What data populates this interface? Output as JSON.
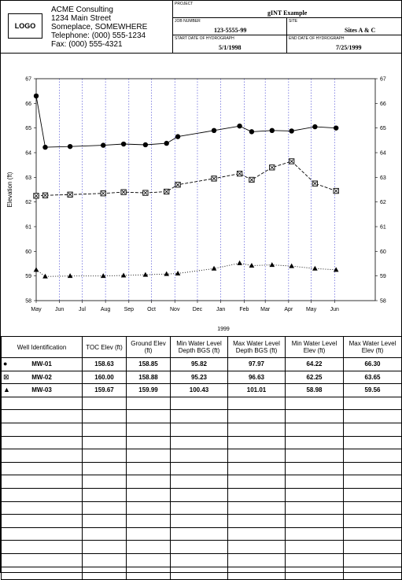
{
  "header": {
    "logo": "LOGO",
    "company_lines": [
      "ACME Consulting",
      "1234 Main Street",
      "Someplace, SOMEWHERE",
      "Telephone:  (000) 555-1234",
      "Fax:  (000) 555-4321"
    ],
    "project_label": "PROJECT",
    "project": "gINT Example",
    "job_number_label": "JOB NUMBER",
    "job_number": "123-5555-99",
    "site_label": "SITE",
    "site": "Sites A & C",
    "start_label": "START DATE OF HYDROGRAPH",
    "start_date": "5/1/1998",
    "end_label": "END DATE OF HYDROGRAPH",
    "end_date": "7/25/1999"
  },
  "chart_data": {
    "type": "line",
    "ylabel": "Elevation (ft)",
    "xlabel": "",
    "ylim": [
      58,
      67
    ],
    "yticks": [
      "58",
      "59",
      "60",
      "61",
      "62",
      "63",
      "64",
      "65",
      "66",
      "67"
    ],
    "x_tick_labels": [
      "May",
      "Jun",
      "Jul",
      "Aug",
      "Sep",
      "Oct",
      "Nov",
      "Dec",
      "Jan",
      "Feb",
      "Mar",
      "Apr",
      "May",
      "Jun"
    ],
    "year_label": "1999",
    "grid": "vertical dotted",
    "series": [
      {
        "name": "MW-01",
        "marker": "circle",
        "line": "solid",
        "points": [
          [
            "1998-05-01",
            66.3
          ],
          [
            "1998-05-13",
            64.22
          ],
          [
            "1998-06-15",
            64.25
          ],
          [
            "1998-07-29",
            64.3
          ],
          [
            "1998-08-25",
            64.35
          ],
          [
            "1998-09-23",
            64.32
          ],
          [
            "1998-10-21",
            64.38
          ],
          [
            "1998-11-05",
            64.65
          ],
          [
            "1998-12-23",
            64.9
          ],
          [
            "1999-01-26",
            65.08
          ],
          [
            "1999-02-11",
            64.85
          ],
          [
            "1999-03-10",
            64.9
          ],
          [
            "1999-04-05",
            64.88
          ],
          [
            "1999-05-06",
            65.05
          ],
          [
            "1999-06-03",
            65.0
          ]
        ]
      },
      {
        "name": "MW-02",
        "marker": "boxed-x",
        "line": "dashed",
        "points": [
          [
            "1998-05-01",
            62.25
          ],
          [
            "1998-05-13",
            62.27
          ],
          [
            "1998-06-15",
            62.3
          ],
          [
            "1998-07-29",
            62.35
          ],
          [
            "1998-08-25",
            62.4
          ],
          [
            "1998-09-23",
            62.37
          ],
          [
            "1998-10-21",
            62.42
          ],
          [
            "1998-11-05",
            62.7
          ],
          [
            "1998-12-23",
            62.95
          ],
          [
            "1999-01-26",
            63.15
          ],
          [
            "1999-02-11",
            62.9
          ],
          [
            "1999-03-10",
            63.4
          ],
          [
            "1999-04-05",
            63.65
          ],
          [
            "1999-05-06",
            62.75
          ],
          [
            "1999-06-03",
            62.45
          ]
        ]
      },
      {
        "name": "MW-03",
        "marker": "triangle",
        "line": "dotted",
        "points": [
          [
            "1998-05-01",
            59.25
          ],
          [
            "1998-05-13",
            58.98
          ],
          [
            "1998-06-15",
            59.0
          ],
          [
            "1998-07-29",
            59.0
          ],
          [
            "1998-08-25",
            59.02
          ],
          [
            "1998-09-23",
            59.05
          ],
          [
            "1998-10-21",
            59.08
          ],
          [
            "1998-11-05",
            59.1
          ],
          [
            "1998-12-23",
            59.3
          ],
          [
            "1999-01-26",
            59.52
          ],
          [
            "1999-02-11",
            59.42
          ],
          [
            "1999-03-10",
            59.45
          ],
          [
            "1999-04-05",
            59.4
          ],
          [
            "1999-05-06",
            59.3
          ],
          [
            "1999-06-03",
            59.25
          ]
        ]
      }
    ]
  },
  "table": {
    "headers": [
      "Well Identification",
      "TOC Elev (ft)",
      "Ground Elev (ft)",
      "Min Water Level Depth BGS (ft)",
      "Max Water Level Depth BGS (ft)",
      "Min Water Level Elev (ft)",
      "Max Water Level Elev (ft)"
    ],
    "rows": [
      {
        "symbol": "circle",
        "cells": [
          "MW-01",
          "158.63",
          "158.85",
          "95.82",
          "97.97",
          "64.22",
          "66.30"
        ]
      },
      {
        "symbol": "boxed-x",
        "cells": [
          "MW-02",
          "160.00",
          "158.88",
          "95.23",
          "96.63",
          "62.25",
          "63.65"
        ]
      },
      {
        "symbol": "triangle",
        "cells": [
          "MW-03",
          "159.67",
          "159.99",
          "100.43",
          "101.01",
          "58.98",
          "59.56"
        ]
      }
    ],
    "empty_rows": 14
  }
}
